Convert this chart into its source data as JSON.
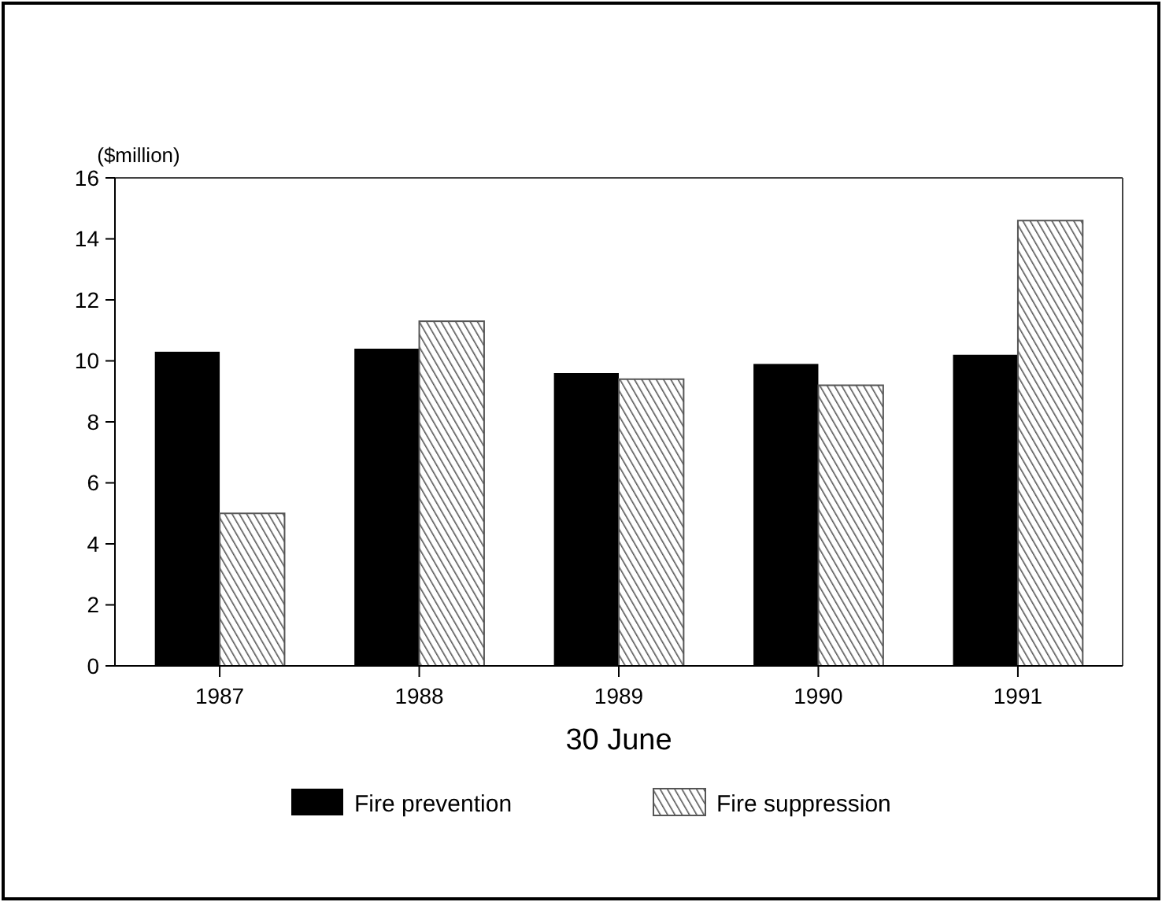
{
  "chart_data": {
    "type": "bar",
    "ylabel": "($million)",
    "xlabel": "30 June",
    "categories": [
      "1987",
      "1988",
      "1989",
      "1990",
      "1991"
    ],
    "series": [
      {
        "name": "Fire prevention",
        "color": "#000000",
        "values": [
          10.3,
          10.4,
          9.6,
          9.9,
          10.2
        ]
      },
      {
        "name": "Fire suppression",
        "color": "#555555",
        "values": [
          5.0,
          11.3,
          9.4,
          9.2,
          14.6
        ]
      }
    ],
    "ylim": [
      0,
      16
    ],
    "yticks": [
      0,
      2,
      4,
      6,
      8,
      10,
      12,
      14,
      16
    ],
    "grid": false,
    "legend": "bottom"
  }
}
